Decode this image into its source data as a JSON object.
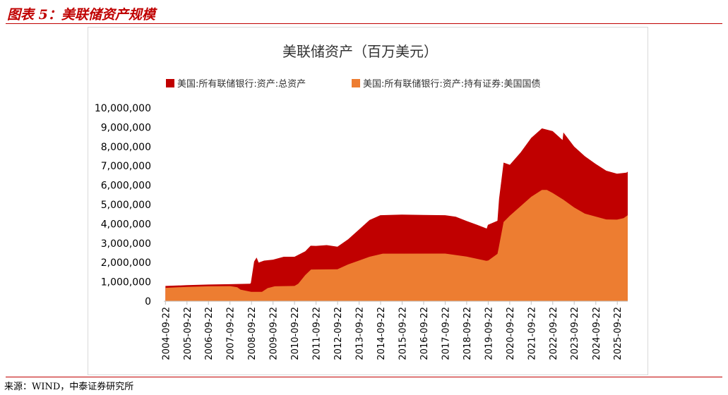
{
  "figure_label": "图表 5：美联储资产规模",
  "source": "来源：WIND，中泰证券研究所",
  "colors": {
    "accent": "#c00000",
    "total_assets": "#c00000",
    "treasuries": "#ed7d31"
  },
  "chart_data": {
    "type": "area",
    "title": "美联储资产（百万美元）",
    "legend_position": "top",
    "grid": false,
    "ylim": [
      0,
      10000000
    ],
    "yticks": [
      "0",
      "1,000,000",
      "2,000,000",
      "3,000,000",
      "4,000,000",
      "5,000,000",
      "6,000,000",
      "7,000,000",
      "8,000,000",
      "9,000,000",
      "10,000,000"
    ],
    "xticks": [
      "2004-09-22",
      "2005-09-22",
      "2006-09-22",
      "2007-09-22",
      "2008-09-22",
      "2009-09-22",
      "2010-09-22",
      "2011-09-22",
      "2012-09-22",
      "2013-09-22",
      "2014-09-22",
      "2015-09-22",
      "2016-09-22",
      "2017-09-22",
      "2018-09-22",
      "2019-09-22",
      "2020-09-22",
      "2021-09-22",
      "2022-09-22",
      "2023-09-22",
      "2024-09-22",
      "2025-09-22"
    ],
    "series": [
      {
        "name": "美国:所有联储银行:资产:总资产",
        "color": "#c00000",
        "points": [
          [
            "2004-09-22",
            790000
          ],
          [
            "2005-09-22",
            830000
          ],
          [
            "2006-09-22",
            860000
          ],
          [
            "2007-09-22",
            880000
          ],
          [
            "2008-08-27",
            900000
          ],
          [
            "2008-09-10",
            940000
          ],
          [
            "2008-11-05",
            2050000
          ],
          [
            "2008-12-17",
            2260000
          ],
          [
            "2009-01-21",
            2000000
          ],
          [
            "2009-04-22",
            2100000
          ],
          [
            "2009-09-22",
            2150000
          ],
          [
            "2010-03-24",
            2300000
          ],
          [
            "2010-09-22",
            2300000
          ],
          [
            "2011-03-23",
            2580000
          ],
          [
            "2011-06-22",
            2870000
          ],
          [
            "2011-09-21",
            2860000
          ],
          [
            "2012-03-21",
            2900000
          ],
          [
            "2012-09-19",
            2820000
          ],
          [
            "2013-03-20",
            3200000
          ],
          [
            "2013-09-18",
            3700000
          ],
          [
            "2014-03-19",
            4200000
          ],
          [
            "2014-09-17",
            4450000
          ],
          [
            "2015-09-16",
            4480000
          ],
          [
            "2016-09-21",
            4460000
          ],
          [
            "2017-09-20",
            4450000
          ],
          [
            "2018-03-21",
            4370000
          ],
          [
            "2018-09-19",
            4150000
          ],
          [
            "2019-03-20",
            3950000
          ],
          [
            "2019-08-28",
            3760000
          ],
          [
            "2019-09-18",
            3950000
          ],
          [
            "2020-02-26",
            4160000
          ],
          [
            "2020-03-25",
            5300000
          ],
          [
            "2020-06-10",
            7170000
          ],
          [
            "2020-09-23",
            7060000
          ],
          [
            "2021-03-24",
            7690000
          ],
          [
            "2021-09-22",
            8450000
          ],
          [
            "2022-03-23",
            8940000
          ],
          [
            "2022-09-21",
            8800000
          ],
          [
            "2023-03-08",
            8340000
          ],
          [
            "2023-03-22",
            8730000
          ],
          [
            "2023-09-20",
            8000000
          ],
          [
            "2024-03-20",
            7500000
          ],
          [
            "2024-09-18",
            7110000
          ],
          [
            "2025-03-19",
            6750000
          ],
          [
            "2025-09-17",
            6600000
          ],
          [
            "2026-02-25",
            6650000
          ],
          [
            "2026-03-18",
            6700000
          ]
        ]
      },
      {
        "name": "美国:所有联储银行:资产:持有证券:美国国债",
        "color": "#ed7d31",
        "points": [
          [
            "2004-09-22",
            690000
          ],
          [
            "2005-09-22",
            740000
          ],
          [
            "2006-09-22",
            770000
          ],
          [
            "2007-09-22",
            780000
          ],
          [
            "2008-01-23",
            720000
          ],
          [
            "2008-03-19",
            600000
          ],
          [
            "2008-09-17",
            480000
          ],
          [
            "2009-03-18",
            480000
          ],
          [
            "2009-06-24",
            680000
          ],
          [
            "2009-10-21",
            770000
          ],
          [
            "2010-09-22",
            790000
          ],
          [
            "2010-11-24",
            900000
          ],
          [
            "2011-03-23",
            1350000
          ],
          [
            "2011-06-29",
            1640000
          ],
          [
            "2012-09-19",
            1650000
          ],
          [
            "2013-03-20",
            1900000
          ],
          [
            "2013-09-18",
            2100000
          ],
          [
            "2014-03-19",
            2300000
          ],
          [
            "2014-10-29",
            2460000
          ],
          [
            "2017-09-20",
            2465000
          ],
          [
            "2018-09-19",
            2310000
          ],
          [
            "2019-08-21",
            2090000
          ],
          [
            "2019-09-25",
            2110000
          ],
          [
            "2020-02-26",
            2450000
          ],
          [
            "2020-03-18",
            2750000
          ],
          [
            "2020-06-10",
            4100000
          ],
          [
            "2020-09-23",
            4420000
          ],
          [
            "2021-09-22",
            5400000
          ],
          [
            "2022-03-23",
            5760000
          ],
          [
            "2022-06-15",
            5760000
          ],
          [
            "2022-09-21",
            5600000
          ],
          [
            "2023-03-22",
            5250000
          ],
          [
            "2023-09-20",
            4850000
          ],
          [
            "2024-03-20",
            4530000
          ],
          [
            "2024-09-18",
            4380000
          ],
          [
            "2025-03-19",
            4230000
          ],
          [
            "2025-09-17",
            4220000
          ],
          [
            "2026-01-07",
            4300000
          ],
          [
            "2026-03-18",
            4450000
          ]
        ]
      }
    ]
  }
}
